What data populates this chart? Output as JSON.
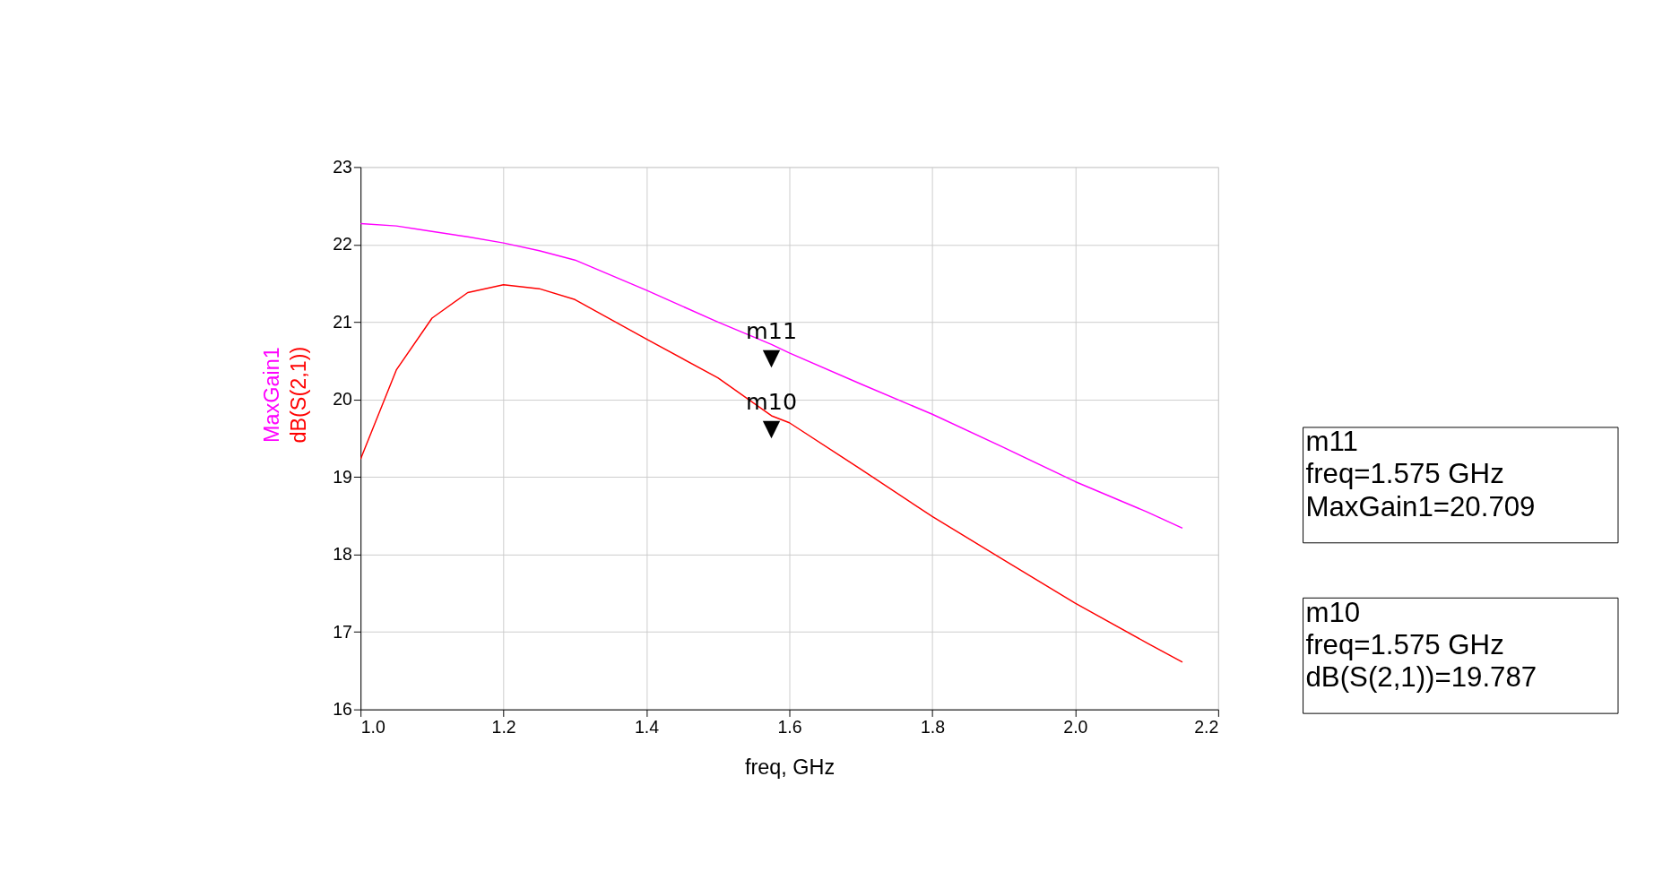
{
  "chart_data": {
    "type": "line",
    "xlabel": "freq, GHz",
    "x": [
      1.0,
      1.05,
      1.1,
      1.15,
      1.2,
      1.25,
      1.3,
      1.4,
      1.5,
      1.575,
      1.6,
      1.7,
      1.8,
      1.9,
      2.0,
      2.1,
      2.15
    ],
    "series": [
      {
        "name": "MaxGain1",
        "color": "#ff00ff",
        "values": [
          22.27,
          22.24,
          22.17,
          22.1,
          22.02,
          21.92,
          21.8,
          21.41,
          21.0,
          20.71,
          20.6,
          20.2,
          19.81,
          19.38,
          18.94,
          18.55,
          18.34
        ]
      },
      {
        "name": "dB(S(2,1))",
        "color": "#ff0000",
        "values": [
          19.23,
          20.38,
          21.05,
          21.38,
          21.48,
          21.43,
          21.29,
          20.78,
          20.28,
          19.79,
          19.7,
          19.1,
          18.49,
          17.93,
          17.37,
          16.86,
          16.61
        ]
      }
    ],
    "xlim": [
      1.0,
      2.2
    ],
    "xticks": [
      {
        "value": 1.0,
        "label": "1.0"
      },
      {
        "value": 1.2,
        "label": "1.2"
      },
      {
        "value": 1.4,
        "label": "1.4"
      },
      {
        "value": 1.6,
        "label": "1.6"
      },
      {
        "value": 1.8,
        "label": "1.8"
      },
      {
        "value": 2.0,
        "label": "2.0"
      },
      {
        "value": 2.2,
        "label": "2.2"
      }
    ],
    "ylim": [
      16,
      23
    ],
    "yticks": [
      16,
      17,
      18,
      19,
      20,
      21,
      22,
      23
    ],
    "grid": true,
    "marker": "none",
    "line_style": "solid",
    "annotations": [
      {
        "text": "m11\n▼",
        "x": 1.575,
        "y": 20.71
      },
      {
        "text": "m10\n▼",
        "x": 1.575,
        "y": 19.79
      },
      "m11\nfreq=1.575 GHz\nMaxGain1=20.709",
      "m10\nfreq=1.575 GHz\ndB(S(2,1))=19.787"
    ]
  }
}
